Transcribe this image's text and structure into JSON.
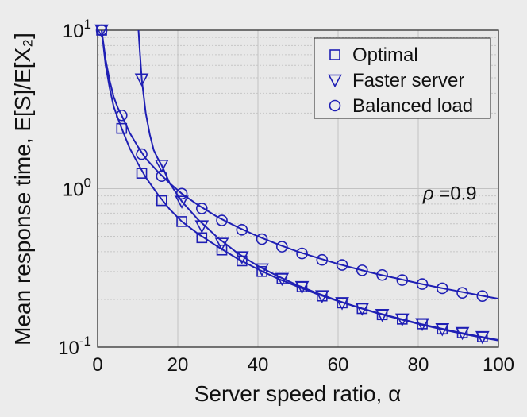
{
  "chart_data": {
    "type": "line",
    "xlabel": "Server speed ratio, α",
    "ylabel": "Mean response time, E[S]/E[X₂]",
    "xlim": [
      0,
      100
    ],
    "ylim": [
      0.1,
      10
    ],
    "yscale": "log",
    "xticks": [
      0,
      20,
      40,
      60,
      80,
      100
    ],
    "yticks": [
      {
        "value": 10,
        "base": "10",
        "exp": "1"
      },
      {
        "value": 1,
        "base": "10",
        "exp": "0"
      },
      {
        "value": 0.1,
        "base": "10",
        "exp": "-1"
      }
    ],
    "grid": true,
    "legend_position": "top-right",
    "annotation": {
      "prefix": "ρ",
      "text": " =0.9",
      "x": 93,
      "y": 0.85
    },
    "color": "#1f1fb4",
    "series": [
      {
        "name": "Optimal",
        "marker": "square",
        "x": [
          1,
          6,
          11,
          16,
          21,
          26,
          31,
          36,
          41,
          46,
          51,
          56,
          61,
          66,
          71,
          76,
          81,
          86,
          91,
          96
        ],
        "y": [
          10,
          2.4,
          1.25,
          0.84,
          0.62,
          0.49,
          0.41,
          0.35,
          0.3,
          0.27,
          0.24,
          0.21,
          0.19,
          0.175,
          0.16,
          0.15,
          0.14,
          0.13,
          0.123,
          0.116
        ],
        "curve_x": [
          1,
          2,
          3,
          4,
          5,
          6,
          8,
          10,
          12,
          15,
          18,
          21,
          25,
          30,
          35,
          40,
          45,
          50,
          55,
          60,
          65,
          70,
          75,
          80,
          85,
          90,
          95,
          100
        ],
        "curve_y": [
          10,
          6.0,
          4.3,
          3.3,
          2.8,
          2.4,
          1.8,
          1.45,
          1.18,
          0.92,
          0.74,
          0.62,
          0.52,
          0.43,
          0.36,
          0.31,
          0.27,
          0.24,
          0.215,
          0.195,
          0.178,
          0.164,
          0.152,
          0.141,
          0.132,
          0.124,
          0.117,
          0.111
        ]
      },
      {
        "name": "Faster server",
        "marker": "triangle-down",
        "x": [
          1,
          11,
          16,
          21,
          26,
          31,
          36,
          41,
          46,
          51,
          56,
          61,
          66,
          71,
          76,
          81,
          86,
          91,
          96
        ],
        "y": [
          10,
          4.9,
          1.4,
          0.83,
          0.58,
          0.45,
          0.37,
          0.31,
          0.27,
          0.24,
          0.21,
          0.19,
          0.175,
          0.16,
          0.15,
          0.14,
          0.13,
          0.123,
          0.116
        ],
        "curve_x": [
          10.2,
          10.5,
          11,
          12,
          13,
          14,
          15,
          16,
          18,
          21,
          25,
          30,
          35,
          40,
          45,
          50,
          55,
          60,
          65,
          70,
          75,
          80,
          85,
          90,
          95,
          100
        ],
        "curve_y": [
          10,
          7.6,
          4.9,
          3.0,
          2.2,
          1.75,
          1.55,
          1.4,
          1.08,
          0.83,
          0.64,
          0.49,
          0.39,
          0.325,
          0.28,
          0.245,
          0.218,
          0.196,
          0.178,
          0.163,
          0.151,
          0.14,
          0.131,
          0.123,
          0.116,
          0.11
        ]
      },
      {
        "name": "Balanced load",
        "marker": "circle",
        "x": [
          1,
          6,
          11,
          16,
          21,
          26,
          31,
          36,
          41,
          46,
          51,
          56,
          61,
          66,
          71,
          76,
          81,
          86,
          91,
          96
        ],
        "y": [
          10,
          2.9,
          1.65,
          1.2,
          0.93,
          0.75,
          0.63,
          0.55,
          0.48,
          0.43,
          0.39,
          0.355,
          0.33,
          0.305,
          0.285,
          0.265,
          0.25,
          0.235,
          0.22,
          0.21
        ],
        "curve_x": [
          1,
          2,
          3,
          4,
          5,
          6,
          8,
          10,
          12,
          15,
          18,
          21,
          25,
          30,
          35,
          40,
          45,
          50,
          55,
          60,
          65,
          70,
          75,
          80,
          85,
          90,
          95,
          100
        ],
        "curve_y": [
          10,
          6.5,
          4.8,
          3.8,
          3.25,
          2.9,
          2.25,
          1.85,
          1.55,
          1.28,
          1.08,
          0.93,
          0.79,
          0.66,
          0.57,
          0.5,
          0.445,
          0.4,
          0.365,
          0.335,
          0.31,
          0.288,
          0.27,
          0.253,
          0.238,
          0.225,
          0.213,
          0.202
        ]
      }
    ]
  }
}
